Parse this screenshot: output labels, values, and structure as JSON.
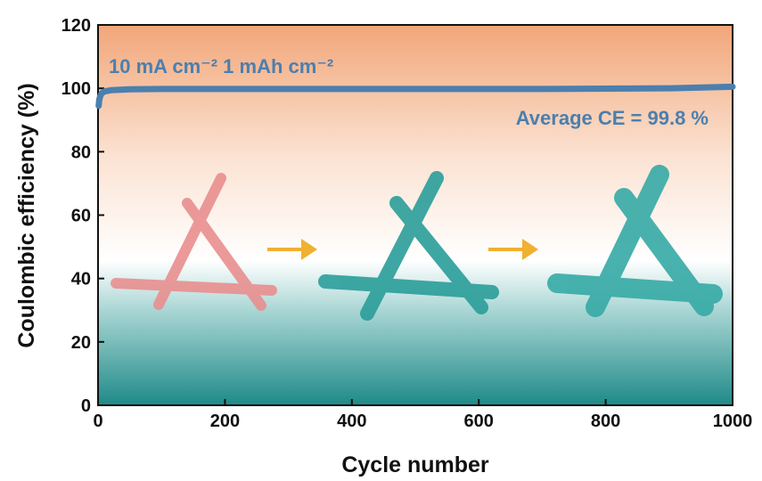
{
  "chart_data": {
    "type": "line",
    "xlabel": "Cycle number",
    "ylabel": "Coulombic efficiency (%)",
    "annotations": [
      "10 mA cm⁻² 1 mAh cm⁻²",
      "Average CE = 99.8 %"
    ],
    "x": [
      1,
      2,
      4,
      6,
      10,
      20,
      50,
      100,
      200,
      300,
      400,
      500,
      600,
      700,
      800,
      900,
      1000
    ],
    "values": [
      94.5,
      96.5,
      97.8,
      98.5,
      99.0,
      99.4,
      99.7,
      99.8,
      99.8,
      99.8,
      99.8,
      99.8,
      99.8,
      99.8,
      99.9,
      100.0,
      100.5
    ],
    "color": "#4b7fae",
    "xlim": [
      0,
      1000
    ],
    "xticks": [
      0,
      200,
      400,
      600,
      800,
      1000
    ],
    "ylim": [
      0,
      120
    ],
    "yticks": [
      0,
      20,
      40,
      60,
      80,
      100,
      120
    ]
  }
}
